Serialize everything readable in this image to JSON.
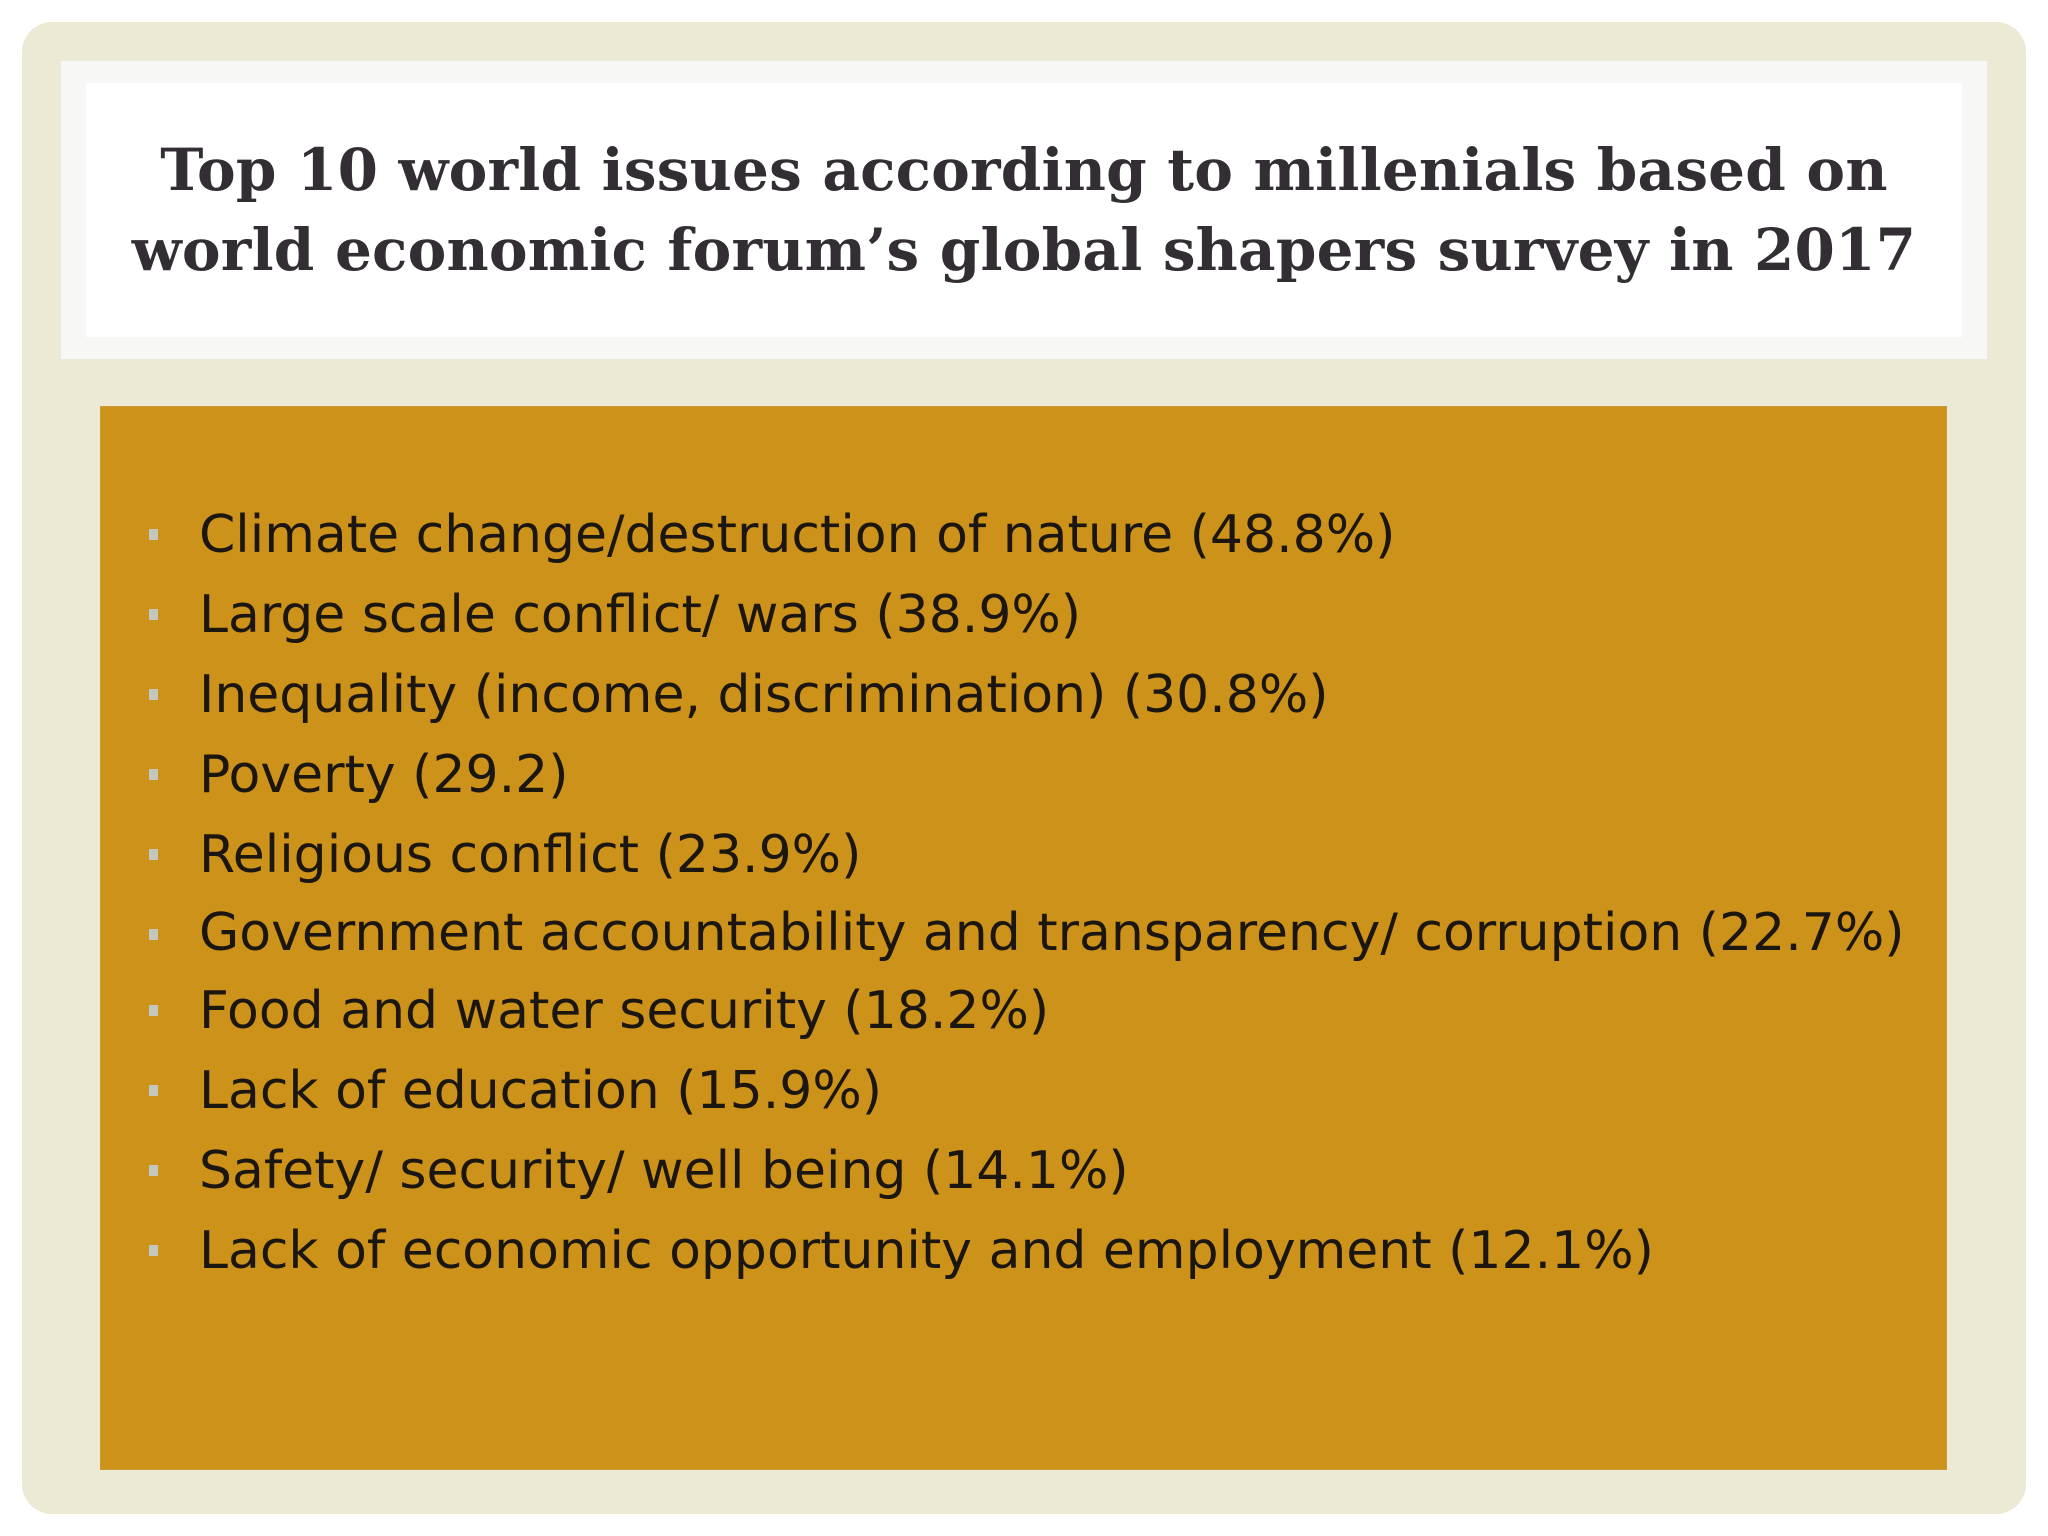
{
  "title": {
    "line1": "Top 10 world issues according to millenials based on",
    "line2": "world economic forum’s global shapers survey in 2017"
  },
  "issues": [
    {
      "text": "Climate change/destruction of nature (48.8%)"
    },
    {
      "text": "Large scale conflict/ wars (38.9%)"
    },
    {
      "text": "Inequality (income, discrimination) (30.8%)"
    },
    {
      "text": "Poverty (29.2)"
    },
    {
      "text": "Religious conflict (23.9%)"
    },
    {
      "text": "Government accountability and transparency/ corruption (22.7%)"
    },
    {
      "text": "Food and water security (18.2%)"
    },
    {
      "text": "Lack of education (15.9%)"
    },
    {
      "text": "Safety/ security/ well being (14.1%)"
    },
    {
      "text": "Lack of economic opportunity and employment (12.1%)"
    }
  ],
  "colors": {
    "frame": "#ece9d4",
    "content_panel": "#cc921a",
    "title_text": "#332e33",
    "bullet": "#c5c7bf"
  }
}
